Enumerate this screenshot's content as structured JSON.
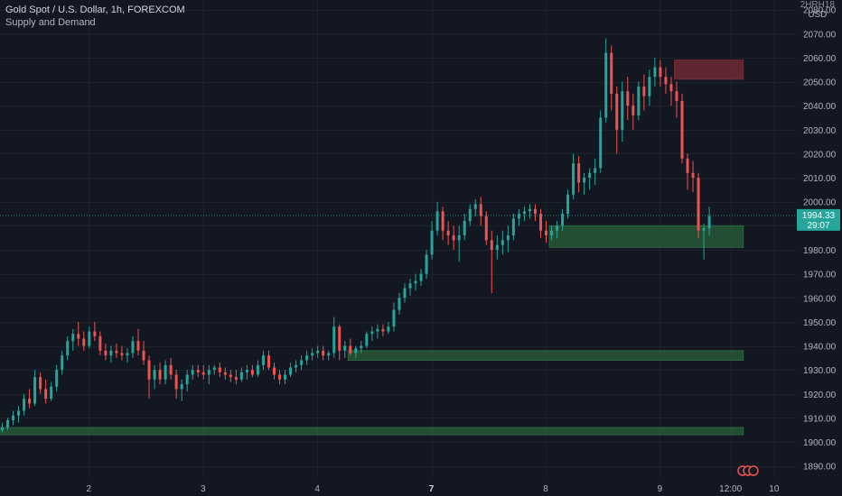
{
  "header": {
    "symbol_line": "Gold Spot / U.S. Dollar, 1h, FOREXCOM",
    "indicator": "Supply and Demand"
  },
  "currency": {
    "top": "2HRH18",
    "bottom": "USD"
  },
  "price_label": {
    "price": "1994.33",
    "countdown": "29:07"
  },
  "colors": {
    "background": "#131722",
    "up": "#26a69a",
    "down": "#ef5350",
    "demand_zone": "#2e6b3e",
    "supply_zone": "#7a2e35",
    "axis_text": "#b2b5be",
    "grid": "#1e222d"
  },
  "chart_data": {
    "type": "candlestick",
    "y_axis": {
      "min": 1885,
      "max": 2084,
      "ticks": [
        1890,
        1900,
        1910,
        1920,
        1930,
        1940,
        1950,
        1960,
        1970,
        1980,
        1990,
        2000,
        2010,
        2020,
        2030,
        2040,
        2050,
        2060,
        2070,
        2080
      ],
      "tick_labels": [
        "1890.00",
        "1900.00",
        "1910.00",
        "1920.00",
        "1930.00",
        "1940.00",
        "1950.00",
        "1960.00",
        "1970.00",
        "1980.00",
        "1990.00",
        "2000.00",
        "2010.00",
        "2020.00",
        "2030.00",
        "2040.00",
        "2050.00",
        "2060.00",
        "2070.00",
        "2080.00"
      ]
    },
    "x_axis": {
      "labels": [
        "2",
        "3",
        "4",
        "7",
        "8",
        "9",
        "12:00",
        "10"
      ],
      "label_bars": [
        16,
        37,
        58,
        79,
        100,
        121,
        134,
        142
      ]
    },
    "last_price": 1994.33,
    "zones": [
      {
        "kind": "demand",
        "bar_start": 0,
        "bar_end": 136,
        "low": 1903,
        "high": 1906
      },
      {
        "kind": "demand",
        "bar_start": 64,
        "bar_end": 136,
        "low": 1934,
        "high": 1938
      },
      {
        "kind": "demand",
        "bar_start": 101,
        "bar_end": 136,
        "low": 1981,
        "high": 1990
      },
      {
        "kind": "supply",
        "bar_start": 124,
        "bar_end": 136,
        "low": 2051,
        "high": 2059
      }
    ],
    "ohlc": [
      [
        1905,
        1908,
        1904,
        1906
      ],
      [
        1906,
        1910,
        1905,
        1909
      ],
      [
        1909,
        1913,
        1907,
        1911
      ],
      [
        1911,
        1915,
        1908,
        1913
      ],
      [
        1913,
        1920,
        1911,
        1918
      ],
      [
        1918,
        1922,
        1914,
        1916
      ],
      [
        1916,
        1930,
        1915,
        1927
      ],
      [
        1927,
        1929,
        1920,
        1922
      ],
      [
        1922,
        1926,
        1916,
        1918
      ],
      [
        1918,
        1925,
        1917,
        1923
      ],
      [
        1923,
        1932,
        1921,
        1930
      ],
      [
        1930,
        1938,
        1928,
        1936
      ],
      [
        1936,
        1944,
        1934,
        1942
      ],
      [
        1942,
        1947,
        1938,
        1945
      ],
      [
        1945,
        1950,
        1940,
        1943
      ],
      [
        1943,
        1946,
        1938,
        1940
      ],
      [
        1940,
        1948,
        1939,
        1946
      ],
      [
        1946,
        1950,
        1942,
        1944
      ],
      [
        1944,
        1946,
        1936,
        1938
      ],
      [
        1938,
        1941,
        1934,
        1936
      ],
      [
        1936,
        1940,
        1933,
        1938
      ],
      [
        1938,
        1941,
        1935,
        1937
      ],
      [
        1937,
        1940,
        1934,
        1936
      ],
      [
        1936,
        1939,
        1933,
        1937
      ],
      [
        1937,
        1944,
        1935,
        1942
      ],
      [
        1942,
        1947,
        1936,
        1938
      ],
      [
        1938,
        1942,
        1932,
        1934
      ],
      [
        1934,
        1936,
        1918,
        1926
      ],
      [
        1926,
        1932,
        1922,
        1930
      ],
      [
        1930,
        1933,
        1924,
        1926
      ],
      [
        1926,
        1934,
        1924,
        1932
      ],
      [
        1932,
        1935,
        1926,
        1928
      ],
      [
        1928,
        1930,
        1918,
        1922
      ],
      [
        1922,
        1926,
        1917,
        1924
      ],
      [
        1924,
        1930,
        1921,
        1928
      ],
      [
        1928,
        1932,
        1926,
        1930
      ],
      [
        1930,
        1932,
        1927,
        1929
      ],
      [
        1929,
        1932,
        1926,
        1928
      ],
      [
        1928,
        1932,
        1924,
        1930
      ],
      [
        1930,
        1932,
        1928,
        1931
      ],
      [
        1931,
        1933,
        1927,
        1929
      ],
      [
        1929,
        1931,
        1926,
        1928
      ],
      [
        1928,
        1930,
        1925,
        1927
      ],
      [
        1927,
        1930,
        1924,
        1926
      ],
      [
        1926,
        1931,
        1925,
        1929
      ],
      [
        1929,
        1932,
        1926,
        1930
      ],
      [
        1930,
        1932,
        1927,
        1928
      ],
      [
        1928,
        1934,
        1927,
        1932
      ],
      [
        1932,
        1938,
        1930,
        1936
      ],
      [
        1936,
        1938,
        1930,
        1931
      ],
      [
        1931,
        1933,
        1926,
        1928
      ],
      [
        1928,
        1930,
        1924,
        1926
      ],
      [
        1926,
        1930,
        1924,
        1928
      ],
      [
        1928,
        1933,
        1927,
        1931
      ],
      [
        1931,
        1934,
        1929,
        1932
      ],
      [
        1932,
        1936,
        1930,
        1934
      ],
      [
        1934,
        1938,
        1932,
        1936
      ],
      [
        1936,
        1939,
        1934,
        1937
      ],
      [
        1937,
        1940,
        1935,
        1938
      ],
      [
        1938,
        1940,
        1934,
        1936
      ],
      [
        1936,
        1938,
        1934,
        1937
      ],
      [
        1937,
        1952,
        1935,
        1948
      ],
      [
        1948,
        1949,
        1934,
        1938
      ],
      [
        1938,
        1942,
        1935,
        1940
      ],
      [
        1940,
        1943,
        1936,
        1937
      ],
      [
        1937,
        1940,
        1935,
        1939
      ],
      [
        1939,
        1942,
        1937,
        1940
      ],
      [
        1940,
        1946,
        1939,
        1945
      ],
      [
        1945,
        1948,
        1942,
        1946
      ],
      [
        1946,
        1949,
        1943,
        1947
      ],
      [
        1947,
        1949,
        1944,
        1946
      ],
      [
        1946,
        1950,
        1945,
        1948
      ],
      [
        1948,
        1958,
        1946,
        1955
      ],
      [
        1955,
        1962,
        1953,
        1960
      ],
      [
        1960,
        1966,
        1958,
        1964
      ],
      [
        1964,
        1968,
        1961,
        1966
      ],
      [
        1966,
        1970,
        1963,
        1967
      ],
      [
        1967,
        1972,
        1965,
        1970
      ],
      [
        1970,
        1980,
        1968,
        1978
      ],
      [
        1978,
        1992,
        1976,
        1988
      ],
      [
        1988,
        2000,
        1986,
        1996
      ],
      [
        1996,
        1998,
        1984,
        1988
      ],
      [
        1988,
        1992,
        1982,
        1986
      ],
      [
        1986,
        1990,
        1980,
        1984
      ],
      [
        1984,
        1990,
        1975,
        1986
      ],
      [
        1986,
        1995,
        1984,
        1992
      ],
      [
        1992,
        1999,
        1990,
        1997
      ],
      [
        1997,
        2001,
        1994,
        1999
      ],
      [
        1999,
        2002,
        1990,
        1994
      ],
      [
        1994,
        1996,
        1982,
        1984
      ],
      [
        1984,
        1988,
        1962,
        1980
      ],
      [
        1980,
        1986,
        1976,
        1982
      ],
      [
        1982,
        1988,
        1978,
        1984
      ],
      [
        1984,
        1990,
        1979,
        1986
      ],
      [
        1986,
        1995,
        1984,
        1993
      ],
      [
        1993,
        1997,
        1990,
        1995
      ],
      [
        1995,
        1998,
        1992,
        1996
      ],
      [
        1996,
        1999,
        1993,
        1997
      ],
      [
        1997,
        1999,
        1992,
        1995
      ],
      [
        1995,
        1997,
        1985,
        1988
      ],
      [
        1988,
        1992,
        1983,
        1986
      ],
      [
        1986,
        1990,
        1984,
        1988
      ],
      [
        1988,
        1992,
        1985,
        1990
      ],
      [
        1990,
        1997,
        1988,
        1995
      ],
      [
        1995,
        2005,
        1993,
        2003
      ],
      [
        2003,
        2020,
        2001,
        2016
      ],
      [
        2016,
        2019,
        2004,
        2008
      ],
      [
        2008,
        2012,
        2003,
        2010
      ],
      [
        2010,
        2014,
        2005,
        2012
      ],
      [
        2012,
        2018,
        2007,
        2014
      ],
      [
        2014,
        2038,
        2012,
        2035
      ],
      [
        2035,
        2068,
        2033,
        2062
      ],
      [
        2062,
        2065,
        2038,
        2045
      ],
      [
        2045,
        2048,
        2020,
        2030
      ],
      [
        2030,
        2050,
        2025,
        2046
      ],
      [
        2046,
        2052,
        2034,
        2040
      ],
      [
        2040,
        2045,
        2030,
        2036
      ],
      [
        2036,
        2050,
        2034,
        2048
      ],
      [
        2048,
        2053,
        2038,
        2044
      ],
      [
        2044,
        2055,
        2040,
        2052
      ],
      [
        2052,
        2060,
        2048,
        2056
      ],
      [
        2056,
        2059,
        2048,
        2052
      ],
      [
        2052,
        2056,
        2045,
        2049
      ],
      [
        2049,
        2052,
        2040,
        2046
      ],
      [
        2046,
        2050,
        2035,
        2042
      ],
      [
        2042,
        2045,
        2016,
        2018
      ],
      [
        2018,
        2020,
        2005,
        2012
      ],
      [
        2012,
        2017,
        2004,
        2010
      ],
      [
        2010,
        2012,
        1985,
        1988
      ],
      [
        1988,
        1991,
        1976,
        1989
      ],
      [
        1989,
        1998,
        1986,
        1994
      ]
    ]
  }
}
